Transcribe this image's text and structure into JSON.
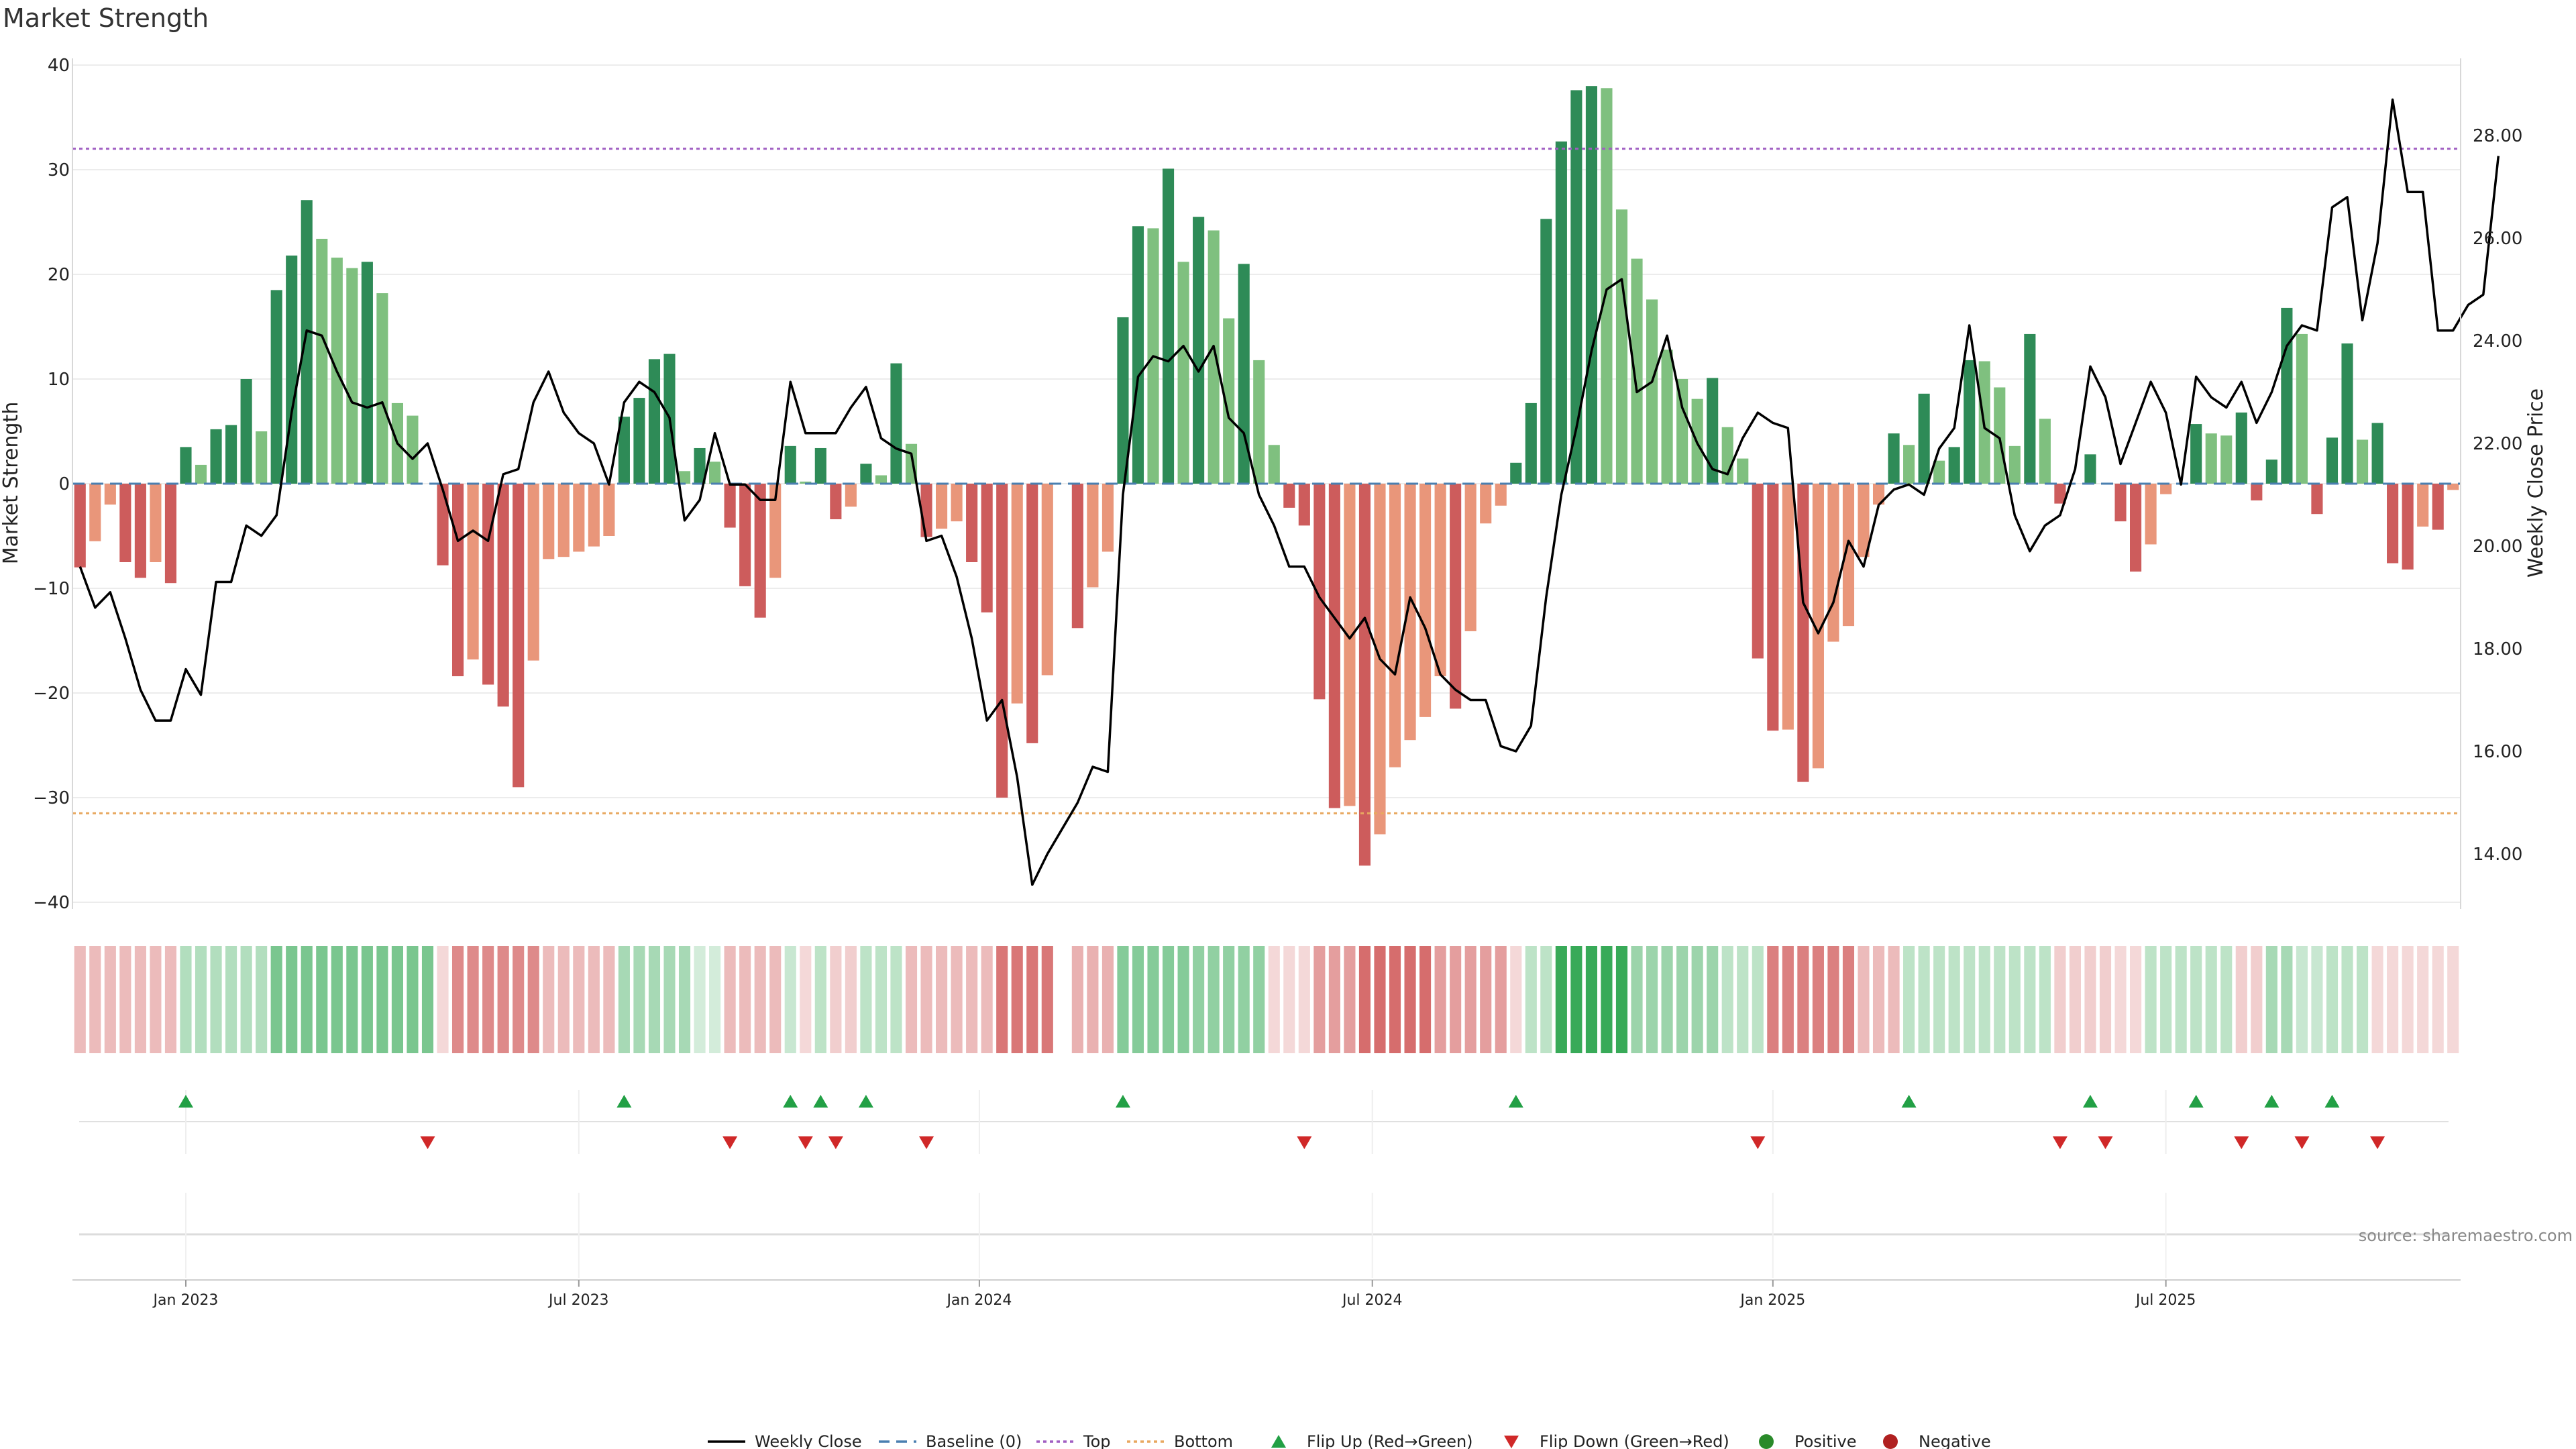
{
  "chart_data": {
    "type": "bar",
    "title": "Market Strength",
    "ylabel_left": "Market Strength",
    "ylabel_right": "Weekly Close Price",
    "ylim_left": [
      -40,
      40
    ],
    "ylim_right": [
      13.0,
      29.0
    ],
    "yticks_left": [
      40,
      30,
      20,
      10,
      0,
      -10,
      -20,
      -30,
      -40
    ],
    "yticks_left_labels": [
      "40",
      "30",
      "20",
      "10",
      "0",
      "−10",
      "−20",
      "−30",
      "−40"
    ],
    "yticks_right": [
      28,
      26,
      24,
      22,
      20,
      18,
      16,
      14
    ],
    "yticks_right_labels": [
      "28.00",
      "26.00",
      "24.00",
      "22.00",
      "20.00",
      "18.00",
      "16.00",
      "14.00"
    ],
    "top_line": 32,
    "bottom_line": -31.5,
    "x_ticks": [
      {
        "label": "Jan 2023",
        "week": 7
      },
      {
        "label": "Jul 2023",
        "week": 33
      },
      {
        "label": "Jan 2024",
        "week": 59.5
      },
      {
        "label": "Jul 2024",
        "week": 85.5
      },
      {
        "label": "Jan 2025",
        "week": 112
      },
      {
        "label": "Jul 2025",
        "week": 138
      }
    ],
    "strength": [
      -8,
      -5.5,
      -2,
      -7.5,
      -9,
      -7.5,
      -9.5,
      3.5,
      1.8,
      5.2,
      5.6,
      10,
      5,
      18.5,
      21.8,
      27.1,
      23.4,
      21.6,
      20.6,
      21.2,
      18.2,
      7.7,
      6.5,
      0,
      -7.8,
      -18.4,
      -16.8,
      -19.2,
      -21.3,
      -29,
      -16.9,
      -7.2,
      -7,
      -6.5,
      -6,
      -5,
      6.4,
      8.2,
      11.9,
      12.4,
      1.2,
      3.4,
      2.1,
      -4.2,
      -9.8,
      -12.8,
      -9,
      3.6,
      0.2,
      3.4,
      -3.4,
      -2.2,
      1.9,
      0.8,
      11.5,
      3.8,
      -5.1,
      -4.3,
      -3.6,
      -7.5,
      -12.3,
      -30,
      -21,
      -24.8,
      -18.3,
      0,
      -13.8,
      -9.9,
      -6.5,
      15.9,
      24.6,
      24.4,
      30.1,
      21.2,
      25.5,
      24.2,
      15.8,
      21,
      11.8,
      3.7,
      -2.3,
      -4,
      -20.6,
      -31,
      -30.8,
      -36.5,
      -33.5,
      -27.1,
      -24.5,
      -22.3,
      -18.4,
      -21.5,
      -14.1,
      -3.8,
      -2.1,
      2,
      7.7,
      25.3,
      32.7,
      37.6,
      38,
      37.8,
      26.2,
      21.5,
      17.6,
      12.8,
      10,
      8.1,
      10.1,
      5.4,
      2.4,
      -16.7,
      -23.6,
      -23.5,
      -28.5,
      -27.2,
      -15.1,
      -13.6,
      -7,
      -2,
      4.8,
      3.7,
      8.6,
      2.2,
      3.5,
      11.8,
      11.7,
      9.2,
      3.6,
      14.3,
      6.2,
      -1.9,
      0,
      2.8,
      0,
      -3.6,
      -8.4,
      -5.8,
      -1,
      0,
      5.7,
      4.8,
      4.6,
      6.8,
      -1.6,
      2.3,
      16.8,
      14.3,
      -2.9,
      4.4,
      13.4,
      4.2,
      5.8,
      -7.6,
      -8.2,
      -4.1,
      -4.4,
      -0.6
    ],
    "close": [
      19.6,
      18.8,
      19.1,
      18.2,
      17.2,
      16.6,
      16.6,
      17.6,
      17.1,
      19.3,
      19.3,
      20.4,
      20.2,
      20.6,
      22.6,
      24.2,
      24.1,
      23.4,
      22.8,
      22.7,
      22.8,
      22,
      21.7,
      22,
      21.1,
      20.1,
      20.3,
      20.1,
      21.4,
      21.5,
      22.8,
      23.4,
      22.6,
      22.2,
      22,
      21.2,
      22.8,
      23.2,
      23,
      22.5,
      20.5,
      20.9,
      22.2,
      21.2,
      21.2,
      20.9,
      20.9,
      23.2,
      22.2,
      22.2,
      22.2,
      22.7,
      23.1,
      22.1,
      21.9,
      21.8,
      20.1,
      20.2,
      19.4,
      18.2,
      16.6,
      17,
      15.5,
      13.4,
      14,
      14.5,
      15,
      15.7,
      15.6,
      21,
      23.3,
      23.7,
      23.6,
      23.9,
      23.4,
      23.9,
      22.5,
      22.2,
      21,
      20.4,
      19.6,
      19.6,
      19,
      18.6,
      18.2,
      18.6,
      17.8,
      17.5,
      19,
      18.4,
      17.5,
      17.2,
      17,
      17,
      16.1,
      16,
      16.5,
      19,
      21,
      22.3,
      23.8,
      25,
      25.2,
      23,
      23.2,
      24.1,
      22.7,
      22,
      21.5,
      21.4,
      22.1,
      22.6,
      22.4,
      22.3,
      18.9,
      18.3,
      18.9,
      20.1,
      19.6,
      20.8,
      21.1,
      21.2,
      21,
      21.9,
      22.3,
      24.3,
      22.3,
      22.1,
      20.6,
      19.9,
      20.4,
      20.6,
      21.5,
      23.5,
      22.9,
      21.6,
      22.4,
      23.2,
      22.6,
      21.2,
      23.3,
      22.9,
      22.7,
      23.2,
      22.4,
      23,
      23.9,
      24.3,
      24.2,
      26.6,
      26.8,
      24.4,
      25.9,
      28.7,
      26.9,
      26.9,
      24.2,
      24.2,
      24.7,
      24.9,
      27.6
    ],
    "heatmap_bands": [
      {
        "from": 0,
        "to": 7,
        "state": "neg",
        "intensity": 0.35
      },
      {
        "from": 7,
        "to": 13,
        "state": "pos",
        "intensity": 0.35
      },
      {
        "from": 13,
        "to": 24,
        "state": "pos",
        "intensity": 0.6
      },
      {
        "from": 24,
        "to": 25,
        "state": "neg",
        "intensity": 0.2
      },
      {
        "from": 25,
        "to": 31,
        "state": "neg",
        "intensity": 0.6
      },
      {
        "from": 31,
        "to": 36,
        "state": "neg",
        "intensity": 0.35
      },
      {
        "from": 36,
        "to": 41,
        "state": "pos",
        "intensity": 0.4
      },
      {
        "from": 41,
        "to": 43,
        "state": "pos",
        "intensity": 0.2
      },
      {
        "from": 43,
        "to": 47,
        "state": "neg",
        "intensity": 0.35
      },
      {
        "from": 47,
        "to": 48,
        "state": "pos",
        "intensity": 0.25
      },
      {
        "from": 48,
        "to": 49,
        "state": "neg",
        "intensity": 0.2
      },
      {
        "from": 49,
        "to": 50,
        "state": "pos",
        "intensity": 0.3
      },
      {
        "from": 50,
        "to": 52,
        "state": "neg",
        "intensity": 0.25
      },
      {
        "from": 52,
        "to": 55,
        "state": "pos",
        "intensity": 0.3
      },
      {
        "from": 55,
        "to": 61,
        "state": "neg",
        "intensity": 0.35
      },
      {
        "from": 61,
        "to": 65,
        "state": "neg",
        "intensity": 0.7
      },
      {
        "from": 65,
        "to": 66,
        "state": "none",
        "intensity": 0
      },
      {
        "from": 66,
        "to": 69,
        "state": "neg",
        "intensity": 0.4
      },
      {
        "from": 69,
        "to": 74,
        "state": "pos",
        "intensity": 0.55
      },
      {
        "from": 74,
        "to": 79,
        "state": "pos",
        "intensity": 0.5
      },
      {
        "from": 79,
        "to": 82,
        "state": "neg",
        "intensity": 0.2
      },
      {
        "from": 82,
        "to": 85,
        "state": "neg",
        "intensity": 0.5
      },
      {
        "from": 85,
        "to": 90,
        "state": "neg",
        "intensity": 0.75
      },
      {
        "from": 90,
        "to": 95,
        "state": "neg",
        "intensity": 0.5
      },
      {
        "from": 95,
        "to": 96,
        "state": "neg",
        "intensity": 0.2
      },
      {
        "from": 96,
        "to": 98,
        "state": "pos",
        "intensity": 0.3
      },
      {
        "from": 98,
        "to": 103,
        "state": "pos",
        "intensity": 0.9
      },
      {
        "from": 103,
        "to": 109,
        "state": "pos",
        "intensity": 0.45
      },
      {
        "from": 109,
        "to": 112,
        "state": "pos",
        "intensity": 0.3
      },
      {
        "from": 112,
        "to": 118,
        "state": "neg",
        "intensity": 0.65
      },
      {
        "from": 118,
        "to": 121,
        "state": "neg",
        "intensity": 0.35
      },
      {
        "from": 121,
        "to": 127,
        "state": "pos",
        "intensity": 0.3
      },
      {
        "from": 127,
        "to": 131,
        "state": "pos",
        "intensity": 0.3
      },
      {
        "from": 131,
        "to": 135,
        "state": "neg",
        "intensity": 0.25
      },
      {
        "from": 135,
        "to": 137,
        "state": "neg",
        "intensity": 0.2
      },
      {
        "from": 137,
        "to": 143,
        "state": "pos",
        "intensity": 0.3
      },
      {
        "from": 143,
        "to": 145,
        "state": "neg",
        "intensity": 0.25
      },
      {
        "from": 145,
        "to": 147,
        "state": "pos",
        "intensity": 0.4
      },
      {
        "from": 147,
        "to": 149,
        "state": "pos",
        "intensity": 0.25
      },
      {
        "from": 149,
        "to": 152,
        "state": "pos",
        "intensity": 0.3
      },
      {
        "from": 152,
        "to": 158,
        "state": "neg",
        "intensity": 0.2
      }
    ],
    "flip_up_weeks": [
      7,
      36,
      47,
      49,
      52,
      69,
      95,
      121,
      133,
      140,
      145,
      149
    ],
    "flip_down_weeks": [
      23,
      43,
      48,
      50,
      56,
      81,
      111,
      131,
      134,
      143,
      147,
      152
    ],
    "legend": [
      {
        "label": "Weekly Close",
        "kind": "line",
        "color": "#000000"
      },
      {
        "label": "Baseline (0)",
        "kind": "dash",
        "color": "#4a7fb0"
      },
      {
        "label": "Top",
        "kind": "dot",
        "color": "#a05ec2"
      },
      {
        "label": "Bottom",
        "kind": "dot",
        "color": "#e8a860"
      },
      {
        "label": "Flip Up (Red→Green)",
        "kind": "tri-up",
        "color": "#22a045"
      },
      {
        "label": "Flip Down (Green→Red)",
        "kind": "tri-down",
        "color": "#d02828"
      },
      {
        "label": "Positive",
        "kind": "circle",
        "color": "#2a8a2a"
      },
      {
        "label": "Negative",
        "kind": "circle",
        "color": "#b02020"
      }
    ],
    "colors": {
      "pos_dark": "#2e8b57",
      "pos_light": "#7fc07f",
      "neg_dark": "#cd5c5c",
      "neg_light": "#e9967a",
      "heat_pos": "#22a045",
      "heat_neg": "#c83c3c"
    }
  },
  "source_label": "source: sharemaestro.com"
}
